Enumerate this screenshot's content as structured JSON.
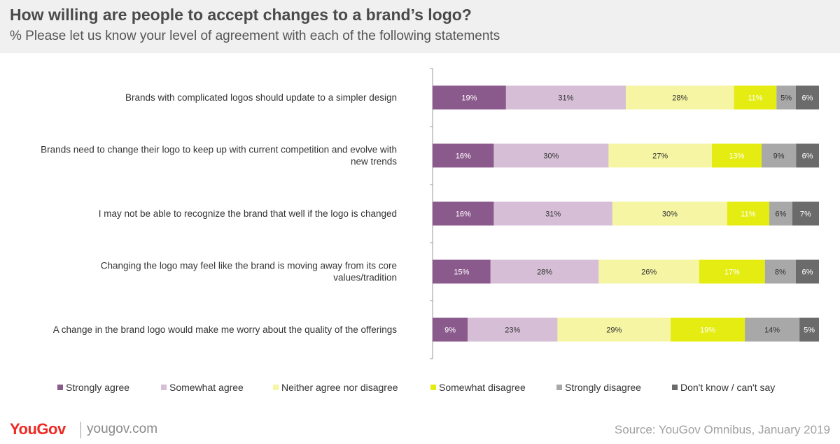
{
  "header": {
    "title": "How willing are people to accept changes to a brand’s logo?",
    "subtitle": "% Please let us know your level of agreement with each of the following statements"
  },
  "footer": {
    "logo": "YouGov",
    "url": "yougov.com",
    "source": "Source: YouGov Omnibus, January 2019"
  },
  "chart_data": {
    "type": "bar",
    "orientation": "horizontal",
    "stacked": true,
    "categories": [
      [
        "Brands with complicated logos should update to a simpler design"
      ],
      [
        "Brands need to change their logo to keep up with current competition and evolve with",
        "new trends"
      ],
      [
        "I may not be able to recognize the brand that well if the logo is changed"
      ],
      [
        "Changing the logo may feel like the brand is moving away from its core",
        "values/tradition"
      ],
      [
        "A change in the brand logo would make me worry about the quality of the offerings"
      ]
    ],
    "series": [
      {
        "name": "Strongly agree",
        "color": "#8b5a8c",
        "label_color": "#ffffff",
        "values": [
          19,
          16,
          16,
          15,
          9
        ]
      },
      {
        "name": "Somewhat agree",
        "color": "#d6bfd6",
        "label_color": "#333333",
        "values": [
          31,
          30,
          31,
          28,
          23
        ]
      },
      {
        "name": "Neither agree nor disagree",
        "color": "#f5f5a3",
        "label_color": "#333333",
        "values": [
          28,
          27,
          30,
          26,
          29
        ]
      },
      {
        "name": "Somewhat disagree",
        "color": "#e5ec12",
        "label_color": "#ffffff",
        "values": [
          11,
          13,
          11,
          17,
          19
        ]
      },
      {
        "name": "Strongly disagree",
        "color": "#a8a8a8",
        "label_color": "#333333",
        "values": [
          5,
          9,
          6,
          8,
          14
        ]
      },
      {
        "name": "Don't know / can't say",
        "color": "#6b6b6b",
        "label_color": "#ffffff",
        "values": [
          6,
          6,
          7,
          6,
          5
        ]
      }
    ],
    "value_suffix": "%",
    "legend_position": "bottom",
    "grid": false
  }
}
